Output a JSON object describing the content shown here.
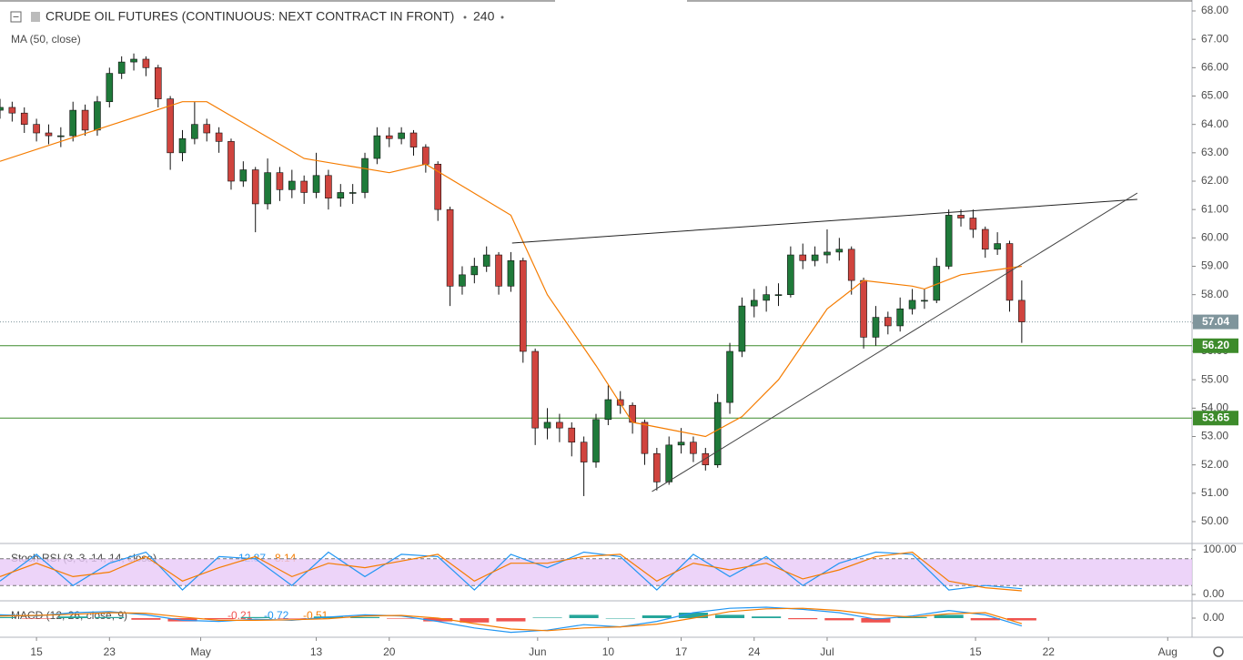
{
  "chart_data": {
    "type": "candlestick",
    "title": "CRUDE OIL FUTURES (CONTINUOUS: NEXT CONTRACT IN FRONT)",
    "interval": "240",
    "indicator_label": "MA (50, close)",
    "up_color": "#1f7a3a",
    "down_color": "#d0443e",
    "xlim": [
      0,
      98
    ],
    "xticks": [
      {
        "value": 3,
        "label": "15"
      },
      {
        "value": 9,
        "label": "23"
      },
      {
        "value": 16.5,
        "label": "May"
      },
      {
        "value": 26,
        "label": "13"
      },
      {
        "value": 32,
        "label": "20"
      },
      {
        "value": 44.2,
        "label": "Jun"
      },
      {
        "value": 50,
        "label": "10"
      },
      {
        "value": 56,
        "label": "17"
      },
      {
        "value": 62,
        "label": "24"
      },
      {
        "value": 68,
        "label": "Jul"
      },
      {
        "value": 80.2,
        "label": "15"
      },
      {
        "value": 86.2,
        "label": "22"
      },
      {
        "value": 96,
        "label": "Aug"
      }
    ],
    "ylim": [
      50,
      68
    ],
    "yticks": [
      {
        "value": 50,
        "label": "50.00"
      },
      {
        "value": 51,
        "label": "51.00"
      },
      {
        "value": 52,
        "label": "52.00"
      },
      {
        "value": 53,
        "label": "53.00"
      },
      {
        "value": 54,
        "label": "54.00"
      },
      {
        "value": 55,
        "label": "55.00"
      },
      {
        "value": 56,
        "label": "56.00"
      },
      {
        "value": 57,
        "label": "57.00"
      },
      {
        "value": 58,
        "label": "58.00"
      },
      {
        "value": 59,
        "label": "59.00"
      },
      {
        "value": 60,
        "label": "60.00"
      },
      {
        "value": 61,
        "label": "61.00"
      },
      {
        "value": 62,
        "label": "62.00"
      },
      {
        "value": 63,
        "label": "63.00"
      },
      {
        "value": 64,
        "label": "64.00"
      },
      {
        "value": 65,
        "label": "65.00"
      },
      {
        "value": 66,
        "label": "66.00"
      },
      {
        "value": 67,
        "label": "67.00"
      },
      {
        "value": 68,
        "label": "68.00"
      }
    ],
    "candles": [
      [
        64.5,
        64.9,
        64.2,
        64.6
      ],
      [
        64.6,
        64.8,
        64.1,
        64.4
      ],
      [
        64.4,
        64.6,
        63.7,
        64.0
      ],
      [
        64.0,
        64.2,
        63.4,
        63.7
      ],
      [
        63.7,
        64.0,
        63.3,
        63.6
      ],
      [
        63.6,
        63.9,
        63.2,
        63.6
      ],
      [
        63.6,
        64.8,
        63.4,
        64.5
      ],
      [
        64.5,
        64.7,
        63.6,
        63.8
      ],
      [
        63.8,
        65.0,
        63.6,
        64.8
      ],
      [
        64.8,
        66.0,
        64.6,
        65.8
      ],
      [
        65.8,
        66.4,
        65.6,
        66.2
      ],
      [
        66.2,
        66.5,
        65.9,
        66.3
      ],
      [
        66.3,
        66.4,
        65.7,
        66.0
      ],
      [
        66.0,
        66.1,
        64.6,
        64.9
      ],
      [
        64.9,
        65.0,
        62.4,
        63.0
      ],
      [
        63.0,
        63.8,
        62.7,
        63.5
      ],
      [
        63.5,
        64.8,
        63.3,
        64.0
      ],
      [
        64.0,
        64.2,
        63.4,
        63.7
      ],
      [
        63.7,
        63.9,
        63.0,
        63.4
      ],
      [
        63.4,
        63.5,
        61.7,
        62.0
      ],
      [
        62.0,
        62.7,
        61.8,
        62.4
      ],
      [
        62.4,
        62.5,
        60.2,
        61.2
      ],
      [
        61.2,
        62.8,
        61.0,
        62.3
      ],
      [
        62.3,
        62.5,
        61.3,
        61.7
      ],
      [
        61.7,
        62.4,
        61.4,
        62.0
      ],
      [
        62.0,
        62.2,
        61.2,
        61.6
      ],
      [
        61.6,
        63.0,
        61.4,
        62.2
      ],
      [
        62.2,
        62.4,
        61.0,
        61.4
      ],
      [
        61.4,
        61.9,
        61.1,
        61.6
      ],
      [
        61.6,
        61.9,
        61.2,
        61.6
      ],
      [
        61.6,
        63.0,
        61.4,
        62.8
      ],
      [
        62.8,
        63.9,
        62.6,
        63.6
      ],
      [
        63.6,
        63.9,
        63.2,
        63.5
      ],
      [
        63.5,
        63.9,
        63.3,
        63.7
      ],
      [
        63.7,
        63.8,
        62.9,
        63.2
      ],
      [
        63.2,
        63.3,
        62.3,
        62.6
      ],
      [
        62.6,
        62.7,
        60.6,
        61.0
      ],
      [
        61.0,
        61.1,
        57.6,
        58.3
      ],
      [
        58.3,
        59.0,
        58.0,
        58.7
      ],
      [
        58.7,
        59.3,
        58.4,
        59.0
      ],
      [
        59.0,
        59.7,
        58.8,
        59.4
      ],
      [
        59.4,
        59.5,
        58.0,
        58.3
      ],
      [
        58.3,
        59.5,
        58.1,
        59.2
      ],
      [
        59.2,
        59.3,
        55.6,
        56.0
      ],
      [
        56.0,
        56.1,
        52.7,
        53.3
      ],
      [
        53.3,
        54.0,
        52.9,
        53.5
      ],
      [
        53.5,
        53.8,
        52.8,
        53.3
      ],
      [
        53.3,
        53.5,
        52.3,
        52.8
      ],
      [
        52.8,
        53.0,
        50.9,
        52.1
      ],
      [
        52.1,
        53.8,
        51.9,
        53.6
      ],
      [
        53.6,
        54.8,
        53.4,
        54.3
      ],
      [
        54.3,
        54.6,
        53.8,
        54.1
      ],
      [
        54.1,
        54.2,
        53.1,
        53.5
      ],
      [
        53.5,
        53.6,
        52.0,
        52.4
      ],
      [
        52.4,
        52.6,
        51.1,
        51.4
      ],
      [
        51.4,
        53.0,
        51.3,
        52.7
      ],
      [
        52.7,
        53.3,
        52.4,
        52.8
      ],
      [
        52.8,
        53.0,
        52.1,
        52.4
      ],
      [
        52.4,
        52.6,
        51.8,
        52.0
      ],
      [
        52.0,
        54.5,
        51.9,
        54.2
      ],
      [
        54.2,
        56.3,
        53.8,
        56.0
      ],
      [
        56.0,
        57.9,
        55.8,
        57.6
      ],
      [
        57.6,
        58.2,
        57.2,
        57.8
      ],
      [
        57.8,
        58.3,
        57.4,
        58.0
      ],
      [
        58.0,
        58.4,
        57.6,
        58.0
      ],
      [
        58.0,
        59.7,
        57.9,
        59.4
      ],
      [
        59.4,
        59.8,
        58.9,
        59.2
      ],
      [
        59.2,
        59.7,
        59.0,
        59.4
      ],
      [
        59.4,
        60.3,
        59.1,
        59.5
      ],
      [
        59.5,
        60.0,
        59.2,
        59.6
      ],
      [
        59.6,
        59.7,
        58.0,
        58.5
      ],
      [
        58.5,
        58.6,
        56.1,
        56.5
      ],
      [
        56.5,
        57.6,
        56.2,
        57.2
      ],
      [
        57.2,
        57.4,
        56.6,
        56.9
      ],
      [
        56.9,
        57.9,
        56.7,
        57.5
      ],
      [
        57.5,
        58.2,
        57.3,
        57.8
      ],
      [
        57.8,
        58.2,
        57.5,
        57.8
      ],
      [
        57.8,
        59.3,
        57.7,
        59.0
      ],
      [
        59.0,
        61.0,
        58.9,
        60.8
      ],
      [
        60.8,
        61.0,
        60.4,
        60.7
      ],
      [
        60.7,
        61.0,
        60.0,
        60.3
      ],
      [
        60.3,
        60.4,
        59.3,
        59.6
      ],
      [
        59.6,
        60.2,
        59.4,
        59.8
      ],
      [
        59.8,
        59.9,
        57.4,
        57.8
      ],
      [
        57.8,
        58.5,
        56.3,
        57.04
      ]
    ],
    "ma": {
      "color": "#f57c00",
      "x": [
        0,
        15,
        17,
        25,
        32,
        35,
        42,
        45,
        49,
        52,
        58,
        61,
        64,
        68,
        71,
        75,
        76,
        79,
        84
      ],
      "values": [
        62.7,
        64.8,
        64.8,
        62.8,
        62.3,
        62.6,
        60.8,
        58.0,
        55.5,
        53.5,
        53.0,
        53.7,
        55.0,
        57.5,
        58.5,
        58.3,
        58.2,
        58.7,
        59.0
      ]
    },
    "trendlines": [
      {
        "color": "#222222",
        "x": [
          42.1,
          93.5
        ],
        "values": [
          59.82,
          61.36
        ]
      },
      {
        "color": "#444444",
        "x": [
          53.6,
          93.5
        ],
        "values": [
          51.06,
          61.58
        ]
      }
    ],
    "price_lines": [
      {
        "value": 57.04,
        "label": "57.04",
        "color": "#7f959c",
        "style": "dotted"
      },
      {
        "value": 56.2,
        "label": "56.20",
        "color": "#3d8b2b",
        "style": "solid"
      },
      {
        "value": 53.65,
        "label": "53.65",
        "color": "#3d8b2b",
        "style": "solid"
      }
    ],
    "stoch": {
      "title": "Stoch RSI (3, 3, 14, 14, close)",
      "ylim": [
        0,
        100
      ],
      "yticks": [
        {
          "value": 100,
          "label": "100.00"
        },
        {
          "value": 0,
          "label": "0.00"
        }
      ],
      "band": [
        20,
        80
      ],
      "x": [
        0,
        3,
        6,
        9,
        12,
        15,
        18,
        21,
        24,
        27,
        30,
        33,
        36,
        39,
        42,
        45,
        48,
        51,
        54,
        57,
        60,
        63,
        66,
        69,
        72,
        75,
        78,
        81,
        84
      ],
      "series": [
        {
          "color": "#2196f3",
          "values": [
            30,
            90,
            20,
            70,
            95,
            10,
            85,
            80,
            20,
            95,
            40,
            90,
            85,
            10,
            90,
            60,
            95,
            85,
            10,
            90,
            40,
            85,
            20,
            70,
            95,
            90,
            10,
            20,
            12.87
          ]
        },
        {
          "color": "#f57c00",
          "values": [
            40,
            70,
            40,
            50,
            85,
            30,
            60,
            85,
            40,
            70,
            60,
            75,
            90,
            30,
            70,
            70,
            85,
            90,
            30,
            70,
            55,
            70,
            35,
            55,
            85,
            95,
            30,
            15,
            8.14
          ]
        }
      ]
    },
    "macd": {
      "title": "MACD (12, 26, close, 9)",
      "ylim": [
        -1.5,
        1.5
      ],
      "yticks": [
        {
          "value": 0,
          "label": "0.00"
        }
      ],
      "x": [
        0,
        3,
        6,
        9,
        12,
        15,
        18,
        21,
        24,
        27,
        30,
        33,
        36,
        39,
        42,
        45,
        48,
        51,
        54,
        57,
        60,
        63,
        66,
        69,
        72,
        75,
        78,
        81,
        84
      ],
      "hist": {
        "up_color": "#26a69a",
        "down_color": "#ef5350",
        "values": [
          0.1,
          -0.05,
          0.15,
          0.1,
          -0.15,
          -0.3,
          -0.1,
          0.1,
          -0.05,
          0.15,
          0.1,
          -0.05,
          -0.3,
          -0.4,
          -0.3,
          0.05,
          0.3,
          0,
          0.25,
          0.5,
          0.3,
          0.15,
          -0.1,
          -0.2,
          -0.4,
          0.1,
          0.3,
          -0.2,
          -0.21
        ]
      },
      "series": [
        {
          "color": "#2196f3",
          "values": [
            0.3,
            0.2,
            0.5,
            0.6,
            0.3,
            -0.2,
            -0.3,
            -0.1,
            -0.2,
            0.1,
            0.3,
            0.2,
            -0.3,
            -0.9,
            -1.3,
            -1.1,
            -0.6,
            -0.8,
            -0.3,
            0.5,
            0.9,
            1.0,
            0.8,
            0.5,
            -0.1,
            0.2,
            0.7,
            0.3,
            -0.72
          ]
        },
        {
          "color": "#f57c00",
          "values": [
            0.2,
            0.25,
            0.35,
            0.5,
            0.45,
            0.1,
            -0.2,
            -0.2,
            -0.15,
            -0.05,
            0.2,
            0.25,
            0,
            -0.5,
            -1.0,
            -1.15,
            -0.9,
            -0.8,
            -0.55,
            0,
            0.6,
            0.85,
            0.9,
            0.7,
            0.3,
            0.1,
            0.4,
            0.5,
            -0.51
          ]
        }
      ]
    }
  }
}
